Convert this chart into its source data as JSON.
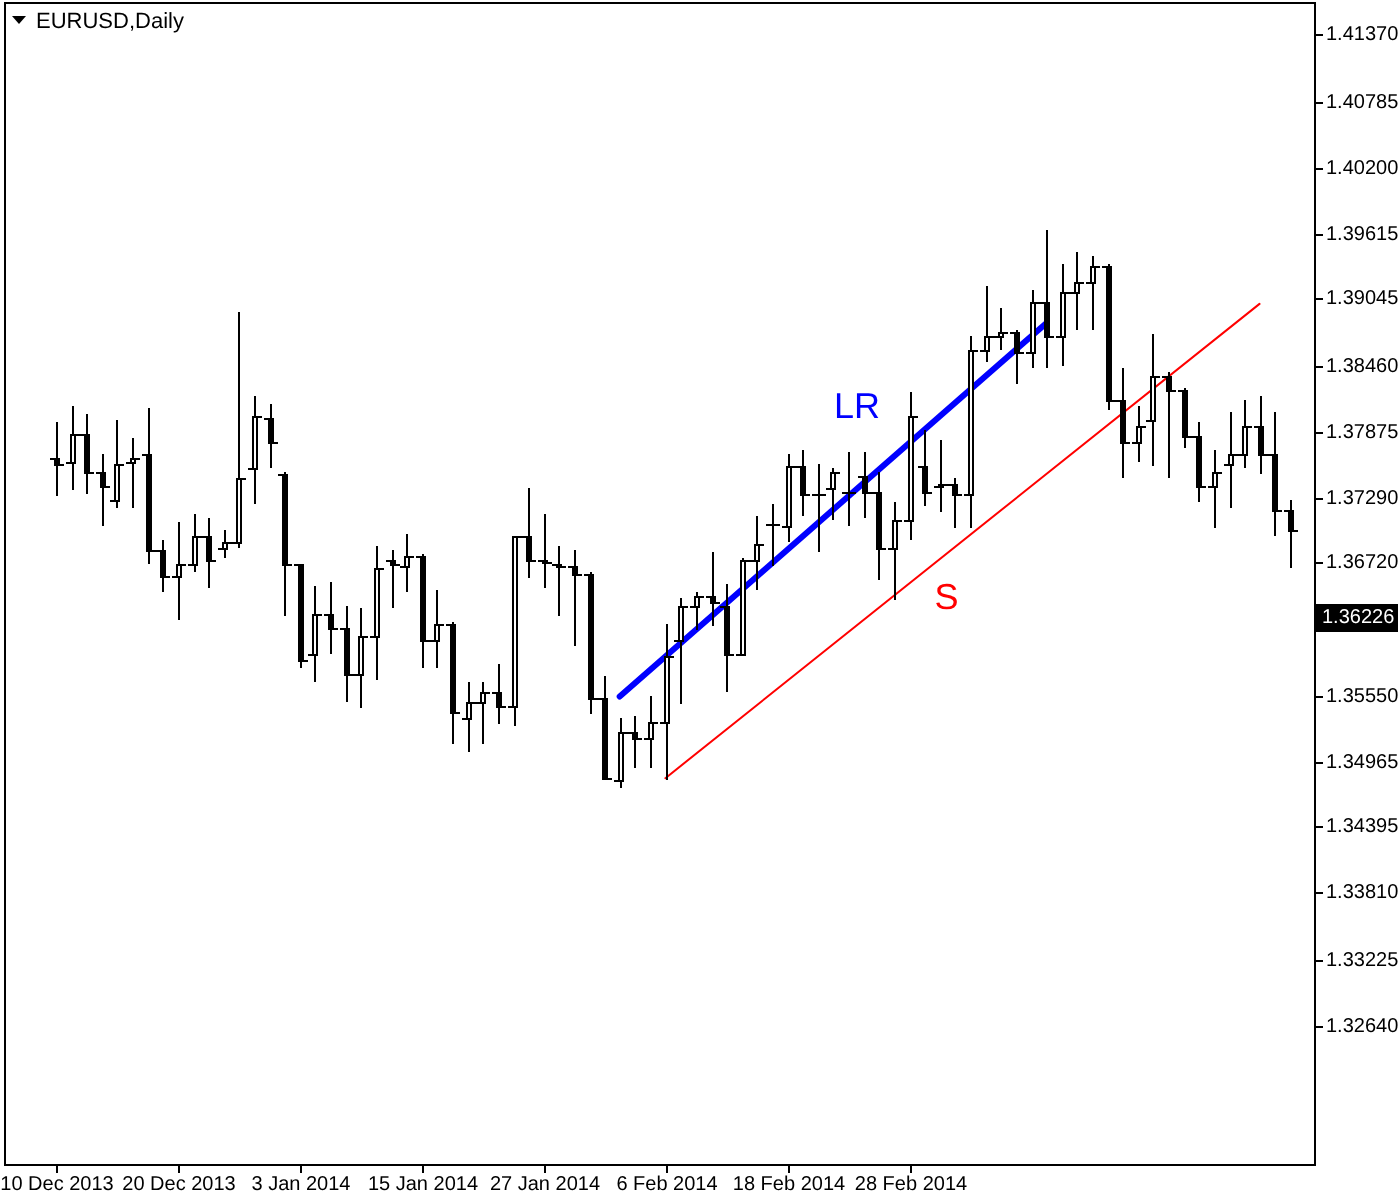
{
  "chart_data": {
    "type": "candlestick",
    "title": "EURUSD,Daily",
    "categories": [
      "10 Dec 2013",
      null,
      null,
      null,
      null,
      null,
      null,
      null,
      "20 Dec 2013",
      null,
      null,
      null,
      null,
      null,
      null,
      null,
      "3 Jan 2014",
      null,
      null,
      null,
      null,
      null,
      null,
      null,
      "15 Jan 2014",
      null,
      null,
      null,
      null,
      null,
      null,
      null,
      "27 Jan 2014",
      null,
      null,
      null,
      null,
      null,
      null,
      null,
      "6 Feb 2014",
      null,
      null,
      null,
      null,
      null,
      null,
      null,
      "18 Feb 2014",
      null,
      null,
      null,
      null,
      null,
      null,
      null,
      "28 Feb 2014",
      null,
      null,
      null,
      null,
      null,
      null,
      null,
      null,
      null,
      null,
      null,
      null,
      null,
      null,
      null,
      null,
      null,
      null,
      null,
      null,
      null,
      null,
      null,
      null,
      null
    ],
    "ohlc": [
      [
        1.3765,
        1.3795,
        1.3732,
        1.3758
      ],
      [
        1.376,
        1.381,
        1.3738,
        1.3785
      ],
      [
        1.3785,
        1.3803,
        1.3734,
        1.3751
      ],
      [
        1.3751,
        1.3767,
        1.3706,
        1.3739
      ],
      [
        1.3727,
        1.3797,
        1.3721,
        1.3758
      ],
      [
        1.376,
        1.3782,
        1.3721,
        1.3765
      ],
      [
        1.3767,
        1.3808,
        1.3673,
        1.3683
      ],
      [
        1.3683,
        1.3692,
        1.3647,
        1.366
      ],
      [
        1.366,
        1.3707,
        1.3623,
        1.367
      ],
      [
        1.3671,
        1.3715,
        1.3665,
        1.3695
      ],
      [
        1.3695,
        1.3711,
        1.3651,
        1.3674
      ],
      [
        1.3684,
        1.37,
        1.3678,
        1.369
      ],
      [
        1.369,
        1.3892,
        1.3686,
        1.3746
      ],
      [
        1.3755,
        1.3819,
        1.3726,
        1.3801
      ],
      [
        1.3799,
        1.3812,
        1.3757,
        1.3778
      ],
      [
        1.375,
        1.3751,
        1.3627,
        1.367
      ],
      [
        1.367,
        1.367,
        1.358,
        1.3586
      ],
      [
        1.3591,
        1.3651,
        1.3569,
        1.3627
      ],
      [
        1.3627,
        1.3655,
        1.3594,
        1.3614
      ],
      [
        1.3614,
        1.3634,
        1.3551,
        1.3573
      ],
      [
        1.3573,
        1.3632,
        1.3546,
        1.3607
      ],
      [
        1.3607,
        1.3687,
        1.357,
        1.3667
      ],
      [
        1.3674,
        1.3683,
        1.3634,
        1.367
      ],
      [
        1.3669,
        1.3698,
        1.3647,
        1.3678
      ],
      [
        1.3678,
        1.3679,
        1.358,
        1.3603
      ],
      [
        1.3603,
        1.3648,
        1.3581,
        1.3617
      ],
      [
        1.3617,
        1.3619,
        1.3514,
        1.354
      ],
      [
        1.3535,
        1.3567,
        1.3506,
        1.355
      ],
      [
        1.355,
        1.3566,
        1.3514,
        1.3558
      ],
      [
        1.3558,
        1.3582,
        1.3532,
        1.3546
      ],
      [
        1.3546,
        1.3696,
        1.3529,
        1.3696
      ],
      [
        1.3695,
        1.3738,
        1.3661,
        1.3674
      ],
      [
        1.3675,
        1.3715,
        1.3652,
        1.3672
      ],
      [
        1.3671,
        1.3687,
        1.3627,
        1.3669
      ],
      [
        1.3669,
        1.3683,
        1.3601,
        1.3662
      ],
      [
        1.3662,
        1.3664,
        1.3541,
        1.3553
      ],
      [
        1.3553,
        1.3572,
        1.3482,
        1.3483
      ],
      [
        1.3481,
        1.3535,
        1.3475,
        1.3523
      ],
      [
        1.3523,
        1.3537,
        1.3492,
        1.3517
      ],
      [
        1.3517,
        1.3555,
        1.3492,
        1.3531
      ],
      [
        1.3531,
        1.3618,
        1.3482,
        1.359
      ],
      [
        1.3604,
        1.3641,
        1.355,
        1.3633
      ],
      [
        1.3633,
        1.3646,
        1.3614,
        1.3643
      ],
      [
        1.3643,
        1.3681,
        1.3618,
        1.3637
      ],
      [
        1.3634,
        1.3653,
        1.356,
        1.3591
      ],
      [
        1.3591,
        1.3676,
        1.3591,
        1.3674
      ],
      [
        1.3674,
        1.3713,
        1.365,
        1.3689
      ],
      [
        1.3706,
        1.3724,
        1.3671,
        1.3706
      ],
      [
        1.3705,
        1.3768,
        1.3692,
        1.3757
      ],
      [
        1.3757,
        1.3771,
        1.3714,
        1.3732
      ],
      [
        1.3732,
        1.3758,
        1.3683,
        1.3732
      ],
      [
        1.3738,
        1.3755,
        1.3712,
        1.3751
      ],
      [
        1.3734,
        1.3769,
        1.3706,
        1.3734
      ],
      [
        1.3749,
        1.3769,
        1.3713,
        1.3734
      ],
      [
        1.3734,
        1.3751,
        1.3658,
        1.3685
      ],
      [
        1.3685,
        1.3725,
        1.364,
        1.3709
      ],
      [
        1.3709,
        1.3822,
        1.3694,
        1.3801
      ],
      [
        1.3757,
        1.3789,
        1.3724,
        1.3734
      ],
      [
        1.3739,
        1.378,
        1.3718,
        1.3742
      ],
      [
        1.3742,
        1.3746,
        1.3705,
        1.3732
      ],
      [
        1.3732,
        1.3871,
        1.3704,
        1.3859
      ],
      [
        1.3859,
        1.3915,
        1.385,
        1.3872
      ],
      [
        1.3872,
        1.3896,
        1.3861,
        1.3876
      ],
      [
        1.3876,
        1.3877,
        1.3832,
        1.3858
      ],
      [
        1.3858,
        1.3912,
        1.3845,
        1.3902
      ],
      [
        1.3902,
        1.3965,
        1.3845,
        1.3872
      ],
      [
        1.3872,
        1.3935,
        1.3847,
        1.391
      ],
      [
        1.391,
        1.3946,
        1.3879,
        1.3919
      ],
      [
        1.3919,
        1.3942,
        1.3879,
        1.3933
      ],
      [
        1.3933,
        1.3935,
        1.3808,
        1.3815
      ],
      [
        1.3815,
        1.3843,
        1.3748,
        1.3778
      ],
      [
        1.3778,
        1.381,
        1.3762,
        1.3792
      ],
      [
        1.3798,
        1.3874,
        1.3758,
        1.3836
      ],
      [
        1.3836,
        1.384,
        1.3748,
        1.3824
      ],
      [
        1.3824,
        1.3825,
        1.3774,
        1.3784
      ],
      [
        1.3784,
        1.3795,
        1.3727,
        1.3739
      ],
      [
        1.3739,
        1.3771,
        1.3704,
        1.3751
      ],
      [
        1.3759,
        1.3805,
        1.3721,
        1.3768
      ],
      [
        1.3768,
        1.3815,
        1.3757,
        1.3793
      ],
      [
        1.3793,
        1.3818,
        1.3751,
        1.3767
      ],
      [
        1.3767,
        1.3805,
        1.3698,
        1.3718
      ],
      [
        1.3718,
        1.3728,
        1.3669,
        1.3701
      ]
    ],
    "series": [
      {
        "name": "LR",
        "type": "line",
        "color": "#0000ff",
        "values": [
          null,
          null,
          null,
          null,
          null,
          null,
          null,
          null,
          null,
          null,
          null,
          null,
          null,
          null,
          null,
          null,
          null,
          null,
          null,
          null,
          null,
          null,
          null,
          null,
          null,
          null,
          null,
          null,
          null,
          null,
          null,
          null,
          null,
          null,
          null,
          null,
          null,
          1.3554,
          null,
          null,
          null,
          null,
          null,
          null,
          null,
          null,
          null,
          null,
          null,
          null,
          null,
          null,
          null,
          null,
          null,
          null,
          null,
          null,
          null,
          null,
          null,
          null,
          null,
          null,
          null,
          1.3883,
          null,
          null,
          null,
          null,
          null,
          null,
          null,
          null,
          null,
          null,
          null,
          null,
          null,
          null,
          null,
          null
        ]
      },
      {
        "name": "S",
        "type": "line",
        "color": "#ff0000",
        "values": [
          null,
          null,
          null,
          null,
          null,
          null,
          null,
          null,
          null,
          null,
          null,
          null,
          null,
          null,
          null,
          null,
          null,
          null,
          null,
          null,
          null,
          null,
          null,
          null,
          null,
          null,
          null,
          null,
          null,
          null,
          null,
          null,
          null,
          null,
          null,
          null,
          null,
          null,
          null,
          null,
          1.3482,
          null,
          null,
          null,
          null,
          null,
          null,
          null,
          null,
          null,
          null,
          null,
          null,
          null,
          null,
          null,
          null,
          null,
          null,
          null,
          null,
          null,
          null,
          null,
          null,
          null,
          null,
          null,
          null,
          null,
          null,
          null,
          null,
          null,
          null,
          null,
          null,
          null,
          null,
          1.39,
          null,
          null
        ]
      }
    ],
    "ylim": [
      1.3142,
      1.4166
    ],
    "yticks": [
      {
        "value": 1.4137,
        "label": "1.41370"
      },
      1.40785,
      {
        "value": 1.402,
        "label": "1.40200"
      },
      1.39615,
      1.39045,
      {
        "value": 1.3846,
        "label": "1.38460"
      },
      1.37875,
      {
        "value": 1.3729,
        "label": "1.37290"
      },
      {
        "value": 1.3672,
        "label": "1.36720"
      },
      {
        "value": 1.36155,
        "label": null
      },
      {
        "value": 1.3555,
        "label": "1.35550"
      },
      1.34965,
      1.34395,
      {
        "value": 1.3381,
        "label": "1.33810"
      },
      1.33225,
      {
        "value": 1.3264,
        "label": "1.32640"
      }
    ],
    "annotations": [
      "1.36226"
    ]
  }
}
